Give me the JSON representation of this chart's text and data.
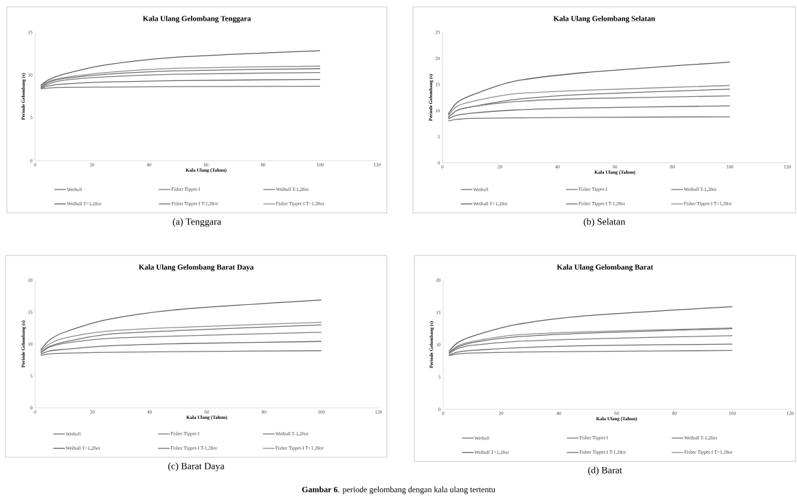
{
  "chart_data": [
    {
      "type": "line",
      "title": "Kala Ulang Gelombang Tenggara",
      "xlabel": "Kala Ulang (Tahun)",
      "ylabel": "Periode Gelombang (s)",
      "annotations": [
        "(a) Tenggara"
      ],
      "legend": "bottom",
      "line_style": "solid",
      "xlim": [
        0,
        120
      ],
      "xticks": [
        0,
        20,
        40,
        60,
        80,
        100,
        120
      ],
      "ylim": [
        0,
        15
      ],
      "yticks": [
        0,
        5,
        10,
        15
      ],
      "x": [
        2,
        5,
        10,
        25,
        50,
        100
      ],
      "series": [
        {
          "name": "Weibull",
          "color": "#6e6e6e",
          "values": [
            8.6,
            9.2,
            9.6,
            10.1,
            10.5,
            10.75
          ]
        },
        {
          "name": "Fisher Tippet-I",
          "color": "#7a7a7a",
          "values": [
            8.5,
            9.0,
            9.4,
            9.8,
            10.1,
            10.3
          ]
        },
        {
          "name": "Weibull T-1,28σr",
          "color": "#757575",
          "values": [
            8.4,
            8.5,
            8.55,
            8.6,
            8.65,
            8.7
          ]
        },
        {
          "name": "Weibull T+1,28σr",
          "color": "#5a5a5a",
          "values": [
            8.8,
            9.5,
            10.1,
            11.2,
            12.1,
            12.85
          ]
        },
        {
          "name": "Fisher Tippet-I T-1,28σr",
          "color": "#6a6a6a",
          "values": [
            8.45,
            8.75,
            8.95,
            9.2,
            9.35,
            9.5
          ]
        },
        {
          "name": "Fisher Tippet-I T+1,28σr",
          "color": "#8c8c8c",
          "values": [
            8.7,
            9.3,
            9.7,
            10.3,
            10.8,
            11.05
          ]
        }
      ]
    },
    {
      "type": "line",
      "title": "Kala Ulang Gelombang Selatan",
      "xlabel": "Kala Ulang (Tahun)",
      "ylabel": "Periode Gelombang (s)",
      "annotations": [
        "(b) Selatan"
      ],
      "legend": "bottom",
      "line_style": "solid",
      "xlim": [
        0,
        120
      ],
      "xticks": [
        0,
        20,
        40,
        60,
        80,
        100,
        120
      ],
      "ylim": [
        0,
        25
      ],
      "yticks": [
        0,
        5,
        10,
        15,
        20,
        25
      ],
      "x": [
        2,
        5,
        10,
        25,
        50,
        100
      ],
      "series": [
        {
          "name": "Weibull",
          "color": "#6e6e6e",
          "values": [
            8.7,
            10.0,
            10.7,
            12.1,
            13.1,
            14.1
          ]
        },
        {
          "name": "Fisher Tippet-I",
          "color": "#7a7a7a",
          "values": [
            8.6,
            10.0,
            10.7,
            11.7,
            12.3,
            12.8
          ]
        },
        {
          "name": "Weibull T-1,28σr",
          "color": "#757575",
          "values": [
            8.0,
            8.3,
            8.5,
            8.6,
            8.7,
            8.8
          ]
        },
        {
          "name": "Weibull T+1,28σr",
          "color": "#5a5a5a",
          "values": [
            9.3,
            11.5,
            12.9,
            15.6,
            17.3,
            19.3
          ]
        },
        {
          "name": "Fisher Tippet-I T-1,28σr",
          "color": "#6a6a6a",
          "values": [
            8.4,
            9.1,
            9.5,
            10.1,
            10.5,
            10.9
          ]
        },
        {
          "name": "Fisher Tippet-I T+1,28σr",
          "color": "#8c8c8c",
          "values": [
            9.0,
            10.8,
            11.7,
            13.2,
            13.9,
            14.8
          ]
        }
      ]
    },
    {
      "type": "line",
      "title": "Kala Ulang Gelombang Barat Daya",
      "xlabel": "Kala Ulang (Tahun)",
      "ylabel": "Periode Gelombang (s)",
      "annotations": [
        "(c) Barat Daya"
      ],
      "legend": "bottom",
      "line_style": "solid",
      "xlim": [
        0,
        120
      ],
      "xticks": [
        0,
        20,
        40,
        60,
        80,
        100,
        120
      ],
      "ylim": [
        0,
        20
      ],
      "yticks": [
        0,
        5,
        10,
        15,
        20
      ],
      "x": [
        2,
        5,
        10,
        25,
        50,
        100
      ],
      "series": [
        {
          "name": "Weibull",
          "color": "#6e6e6e",
          "values": [
            8.7,
            9.6,
            10.3,
            11.5,
            12.1,
            13.0
          ]
        },
        {
          "name": "Fisher Tippet-I",
          "color": "#7a7a7a",
          "values": [
            8.6,
            9.5,
            10.1,
            10.85,
            11.25,
            11.85
          ]
        },
        {
          "name": "Weibull T-1,28σr",
          "color": "#757575",
          "values": [
            8.2,
            8.45,
            8.55,
            8.7,
            8.8,
            8.95
          ]
        },
        {
          "name": "Weibull T+1,28σr",
          "color": "#5a5a5a",
          "values": [
            9.1,
            10.6,
            11.8,
            13.8,
            15.4,
            16.9
          ]
        },
        {
          "name": "Fisher Tippet-I T-1,28σr",
          "color": "#6a6a6a",
          "values": [
            8.4,
            8.9,
            9.15,
            9.7,
            10.05,
            10.4
          ]
        },
        {
          "name": "Fisher Tippet-I T+1,28σr",
          "color": "#8c8c8c",
          "values": [
            8.9,
            10.0,
            10.9,
            12.0,
            12.6,
            13.4
          ]
        }
      ]
    },
    {
      "type": "line",
      "title": "Kala Ulang Gelombang Barat",
      "xlabel": "Kala Ulang (Tahun)",
      "ylabel": "Periode Gelombang (s)",
      "annotations": [
        "(d) Barat",
        "**Gambar 6**. periode gelombang dengan kala ulang tertentu"
      ],
      "legend": "bottom",
      "line_style": "solid",
      "xlim": [
        0,
        120
      ],
      "xticks": [
        0,
        20,
        40,
        60,
        80,
        100,
        120
      ],
      "ylim": [
        0,
        20
      ],
      "yticks": [
        0,
        5,
        10,
        15,
        20
      ],
      "x": [
        2,
        5,
        10,
        25,
        50,
        100
      ],
      "series": [
        {
          "name": "Weibull",
          "color": "#6e6e6e",
          "values": [
            8.7,
            9.6,
            10.3,
            11.2,
            11.8,
            12.5
          ]
        },
        {
          "name": "Fisher Tippet-I",
          "color": "#7a7a7a",
          "values": [
            8.6,
            9.4,
            9.9,
            10.5,
            10.9,
            11.4
          ]
        },
        {
          "name": "Weibull T-1,28σr",
          "color": "#757575",
          "values": [
            8.3,
            8.55,
            8.7,
            8.85,
            8.95,
            9.1
          ]
        },
        {
          "name": "Weibull T+1,28σr",
          "color": "#5a5a5a",
          "values": [
            9.0,
            10.3,
            11.3,
            13.1,
            14.5,
            15.9
          ]
        },
        {
          "name": "Fisher Tippet-I T-1,28σr",
          "color": "#6a6a6a",
          "values": [
            8.4,
            8.85,
            9.1,
            9.5,
            9.85,
            10.1
          ]
        },
        {
          "name": "Fisher Tippet-I T+1,28σr",
          "color": "#8c8c8c",
          "values": [
            8.8,
            9.8,
            10.5,
            11.5,
            12.0,
            12.6
          ]
        }
      ]
    }
  ]
}
